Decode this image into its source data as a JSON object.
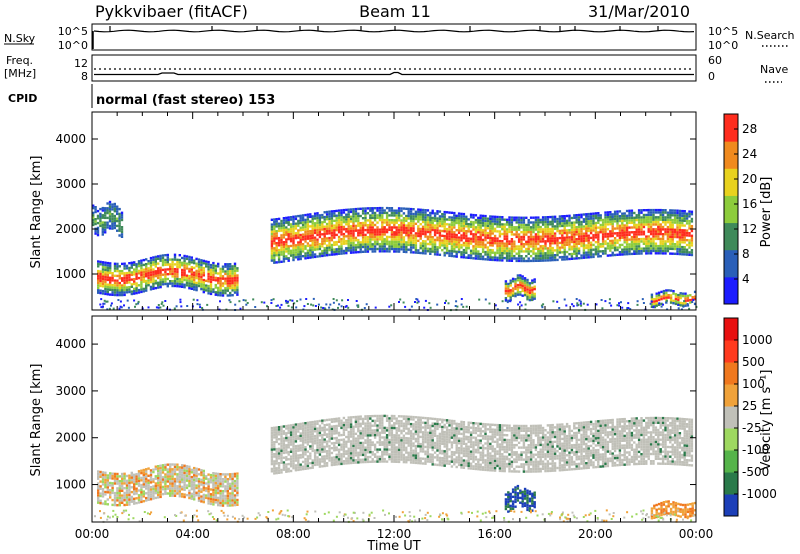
{
  "header": {
    "station": "Pykkvibaer (fitACF)",
    "beam": "Beam 11",
    "date": "31/Mar/2010"
  },
  "top_panels": {
    "nsky_label": "N.Sky",
    "nsky_tick_top": "10^5",
    "nsky_tick_bottom": "10^0",
    "nsearch_label": "N.Search",
    "freq_label_1": "Freq.",
    "freq_label_2": "[MHz]",
    "freq_tick_top": "12",
    "freq_tick_bottom": "8",
    "nave_label": "Nave",
    "nave_tick_top": "60",
    "nave_tick_bottom": "0",
    "cpid_label": "CPID",
    "cpid_text": "normal (fast stereo) 153"
  },
  "chart_data": [
    {
      "type": "heatmap",
      "name": "power",
      "ylabel": "Slant Range [km]",
      "yticks": [
        1000,
        2000,
        3000,
        4000
      ],
      "ylim": [
        200,
        4600
      ],
      "xlim": [
        0,
        24
      ],
      "colorbar": {
        "label": "Power [dB]",
        "ticks": [
          "4",
          "8",
          "12",
          "16",
          "20",
          "24",
          "28"
        ],
        "colors": [
          "#1c1cff",
          "#2a5fb8",
          "#3f8a5a",
          "#8dcc3c",
          "#e8d21e",
          "#f08a1e",
          "#ff2d1e"
        ]
      },
      "echo_bands": [
        {
          "t0": 0.2,
          "t1": 5.8,
          "r0": 600,
          "r1": 1300,
          "intensity": "high"
        },
        {
          "t0": 0.0,
          "t1": 1.2,
          "r0": 1900,
          "r1": 2500,
          "intensity": "low"
        },
        {
          "t0": 7.1,
          "t1": 23.8,
          "r0": 1300,
          "r1": 2300,
          "intensity": "high"
        },
        {
          "t0": 16.4,
          "t1": 17.6,
          "r0": 450,
          "r1": 900,
          "intensity": "high"
        },
        {
          "t0": 22.2,
          "t1": 24.0,
          "r0": 300,
          "r1": 600,
          "intensity": "high"
        }
      ]
    },
    {
      "type": "heatmap",
      "name": "velocity",
      "ylabel": "Slant Range [km]",
      "xlabel": "Time UT",
      "yticks": [
        1000,
        2000,
        3000,
        4000
      ],
      "ylim": [
        200,
        4600
      ],
      "xlim": [
        0,
        24
      ],
      "xticks": [
        "00:00",
        "04:00",
        "08:00",
        "12:00",
        "16:00",
        "20:00",
        "00:00"
      ],
      "colorbar": {
        "label": "Velocity [m s⁻¹]",
        "ticks": [
          "1000",
          "500",
          "100",
          "25",
          "-25",
          "-100",
          "-500",
          "-1000"
        ],
        "colors": [
          "#1c3fb8",
          "#2a7a4a",
          "#55b44a",
          "#9ed860",
          "#c0c0b8",
          "#f0a23a",
          "#f0781e",
          "#ff3a1e",
          "#e81010"
        ]
      },
      "echo_bands": [
        {
          "t0": 0.2,
          "t1": 5.8,
          "r0": 600,
          "r1": 1300,
          "intensity": "mixed"
        },
        {
          "t0": 7.1,
          "t1": 23.8,
          "r0": 1300,
          "r1": 2300,
          "intensity": "ground"
        },
        {
          "t0": 16.4,
          "t1": 17.6,
          "r0": 450,
          "r1": 900,
          "intensity": "toward"
        },
        {
          "t0": 22.2,
          "t1": 24.0,
          "r0": 300,
          "r1": 600,
          "intensity": "away"
        }
      ]
    }
  ]
}
